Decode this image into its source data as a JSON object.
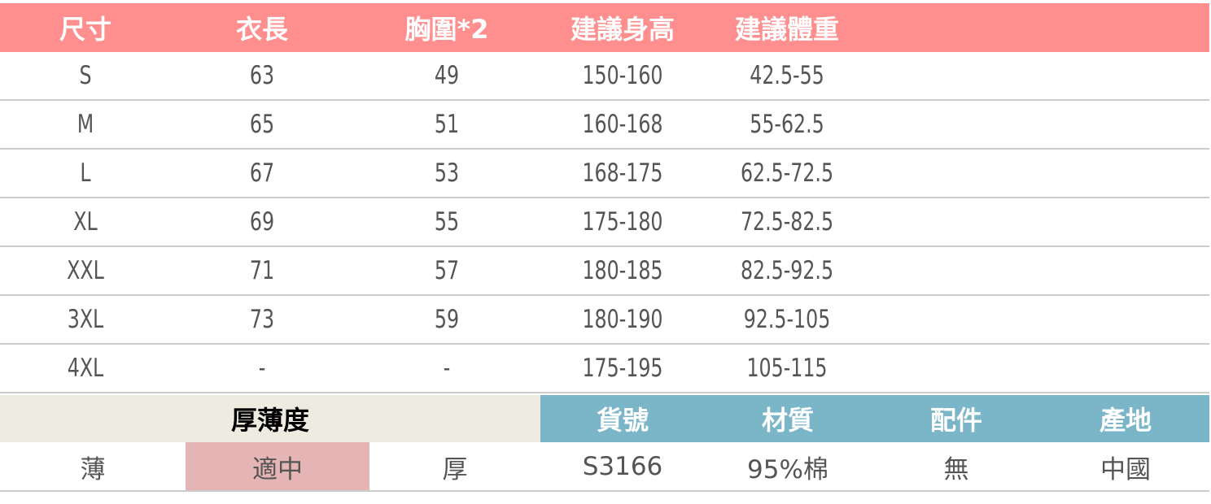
{
  "size_table": {
    "headers": [
      "尺寸",
      "衣長",
      "胸圍*2",
      "建議身高",
      "建議體重"
    ],
    "rows": [
      [
        "S",
        "63",
        "49",
        "150-160",
        "42.5-55"
      ],
      [
        "M",
        "65",
        "51",
        "160-168",
        "55-62.5"
      ],
      [
        "L",
        "67",
        "53",
        "168-175",
        "62.5-72.5"
      ],
      [
        "XL",
        "69",
        "55",
        "175-180",
        "72.5-82.5"
      ],
      [
        "XXL",
        "71",
        "57",
        "180-185",
        "82.5-92.5"
      ],
      [
        "3XL",
        "73",
        "59",
        "180-190",
        "92.5-105"
      ],
      [
        "4XL",
        "-",
        "-",
        "175-195",
        "105-115"
      ]
    ]
  },
  "thickness": {
    "title": "厚薄度",
    "options": [
      "薄",
      "適中",
      "厚"
    ],
    "selected": "適中"
  },
  "info": {
    "headers": [
      "貨號",
      "材質",
      "配件",
      "產地"
    ],
    "values": [
      "S3166",
      "95%棉",
      "無",
      "中國"
    ]
  },
  "colors": {
    "header": "#FF8E8E",
    "thickness_bg": "#EEEBE0",
    "info_header": "#7AB5C8",
    "selected": "#E5B5B5"
  }
}
